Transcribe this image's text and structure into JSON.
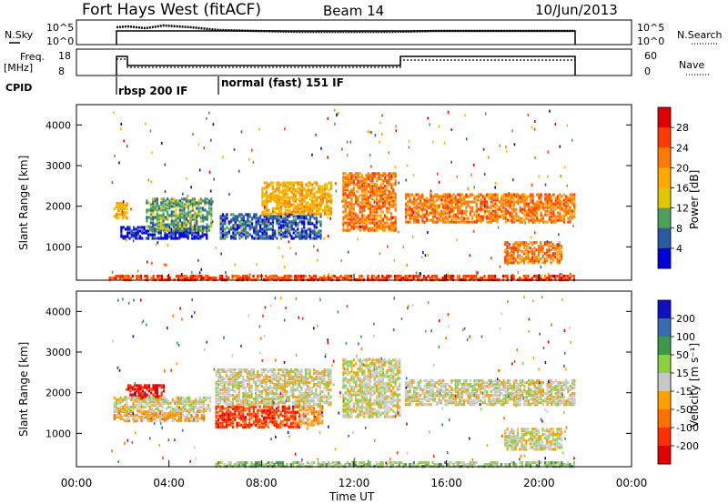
{
  "header": {
    "station": "Fort Hays West (fitACF)",
    "beam": "Beam 14",
    "date": "10/Jun/2013"
  },
  "top_panels": {
    "nsky_label": "N.Sky",
    "nsky_ticks": [
      "10^5",
      "10^0"
    ],
    "nsearch_label": "N.Search",
    "nsearch_ticks": [
      "10^5",
      "10^0"
    ],
    "freq_label": [
      "Freq.",
      "[MHz]"
    ],
    "freq_ticks": [
      "18",
      "8"
    ],
    "nave_label": "Nave",
    "nave_ticks": [
      "60",
      "0"
    ],
    "cpid_label": "CPID",
    "cpid_segments": [
      "rbsp 200 IF",
      "normal (fast) 151 IF"
    ]
  },
  "chart_data": [
    {
      "type": "heatmap",
      "name": "power-panel",
      "ylabel": "Slant Range [km]",
      "yticks": [
        1000,
        2000,
        3000,
        4000
      ],
      "ylim": [
        180,
        4500
      ],
      "xlim": [
        0,
        24
      ],
      "colorbar": {
        "label": "Power [dB]",
        "ticks": [
          "28",
          "24",
          "20",
          "16",
          "12",
          "8",
          "4"
        ],
        "colors": [
          "#e00000",
          "#ff3a00",
          "#ff7a00",
          "#ffa800",
          "#e0c800",
          "#4aa05a",
          "#2a5aa0",
          "#0000d8"
        ]
      },
      "regions": [
        {
          "t0": 1.6,
          "t1": 2.2,
          "r0": 1700,
          "r1": 2100,
          "level": 3
        },
        {
          "t0": 1.9,
          "t1": 5.6,
          "r0": 1200,
          "r1": 1500,
          "level": 7
        },
        {
          "t0": 3.0,
          "t1": 5.8,
          "r0": 1400,
          "r1": 2200,
          "level": 5
        },
        {
          "t0": 6.2,
          "t1": 10.6,
          "r0": 1200,
          "r1": 1800,
          "level": 6
        },
        {
          "t0": 8.0,
          "t1": 11.0,
          "r0": 1800,
          "r1": 2600,
          "level": 3
        },
        {
          "t0": 11.5,
          "t1": 13.8,
          "r0": 1400,
          "r1": 2800,
          "level": 2
        },
        {
          "t0": 14.2,
          "t1": 21.5,
          "r0": 1600,
          "r1": 2300,
          "level": 2
        },
        {
          "t0": 18.5,
          "t1": 21.0,
          "r0": 600,
          "r1": 1100,
          "level": 2
        },
        {
          "t0": 1.4,
          "t1": 21.5,
          "r0": 180,
          "r1": 300,
          "level": 1
        }
      ]
    },
    {
      "type": "heatmap",
      "name": "velocity-panel",
      "ylabel": "Slant Range [km]",
      "yticks": [
        1000,
        2000,
        3000,
        4000
      ],
      "ylim": [
        180,
        4500
      ],
      "xlim": [
        0,
        24
      ],
      "xlabel": "Time UT",
      "xticks": [
        "00:00",
        "04:00",
        "08:00",
        "12:00",
        "16:00",
        "20:00",
        "00:00"
      ],
      "colorbar": {
        "label": "Velocity [m s⁻¹]",
        "ticks": [
          "200",
          "100",
          "50",
          "15",
          "-15",
          "-50",
          "-100",
          "-200"
        ],
        "colors": [
          "#1010c0",
          "#3a6ab0",
          "#3a9a4a",
          "#8ad040",
          "#c8c8c8",
          "#ffa000",
          "#ff7000",
          "#ff3000",
          "#e00000"
        ]
      },
      "regions": [
        {
          "t0": 2.2,
          "t1": 3.8,
          "r0": 1850,
          "r1": 2200,
          "level": 8
        },
        {
          "t0": 1.6,
          "t1": 5.5,
          "r0": 1300,
          "r1": 1550,
          "level": 5
        },
        {
          "t0": 1.6,
          "t1": 5.8,
          "r0": 1550,
          "r1": 1900,
          "level": 4
        },
        {
          "t0": 6.0,
          "t1": 9.6,
          "r0": 1150,
          "r1": 1650,
          "level": 7
        },
        {
          "t0": 9.6,
          "t1": 10.6,
          "r0": 1200,
          "r1": 1700,
          "level": 5
        },
        {
          "t0": 6.0,
          "t1": 11.0,
          "r0": 1700,
          "r1": 2600,
          "level": 4
        },
        {
          "t0": 11.5,
          "t1": 14.0,
          "r0": 1400,
          "r1": 2800,
          "level": 4
        },
        {
          "t0": 14.2,
          "t1": 21.5,
          "r0": 1700,
          "r1": 2300,
          "level": 4
        },
        {
          "t0": 18.5,
          "t1": 21.0,
          "r0": 600,
          "r1": 1100,
          "level": 4
        },
        {
          "t0": 6.0,
          "t1": 21.5,
          "r0": 180,
          "r1": 300,
          "level": 3
        }
      ]
    }
  ]
}
